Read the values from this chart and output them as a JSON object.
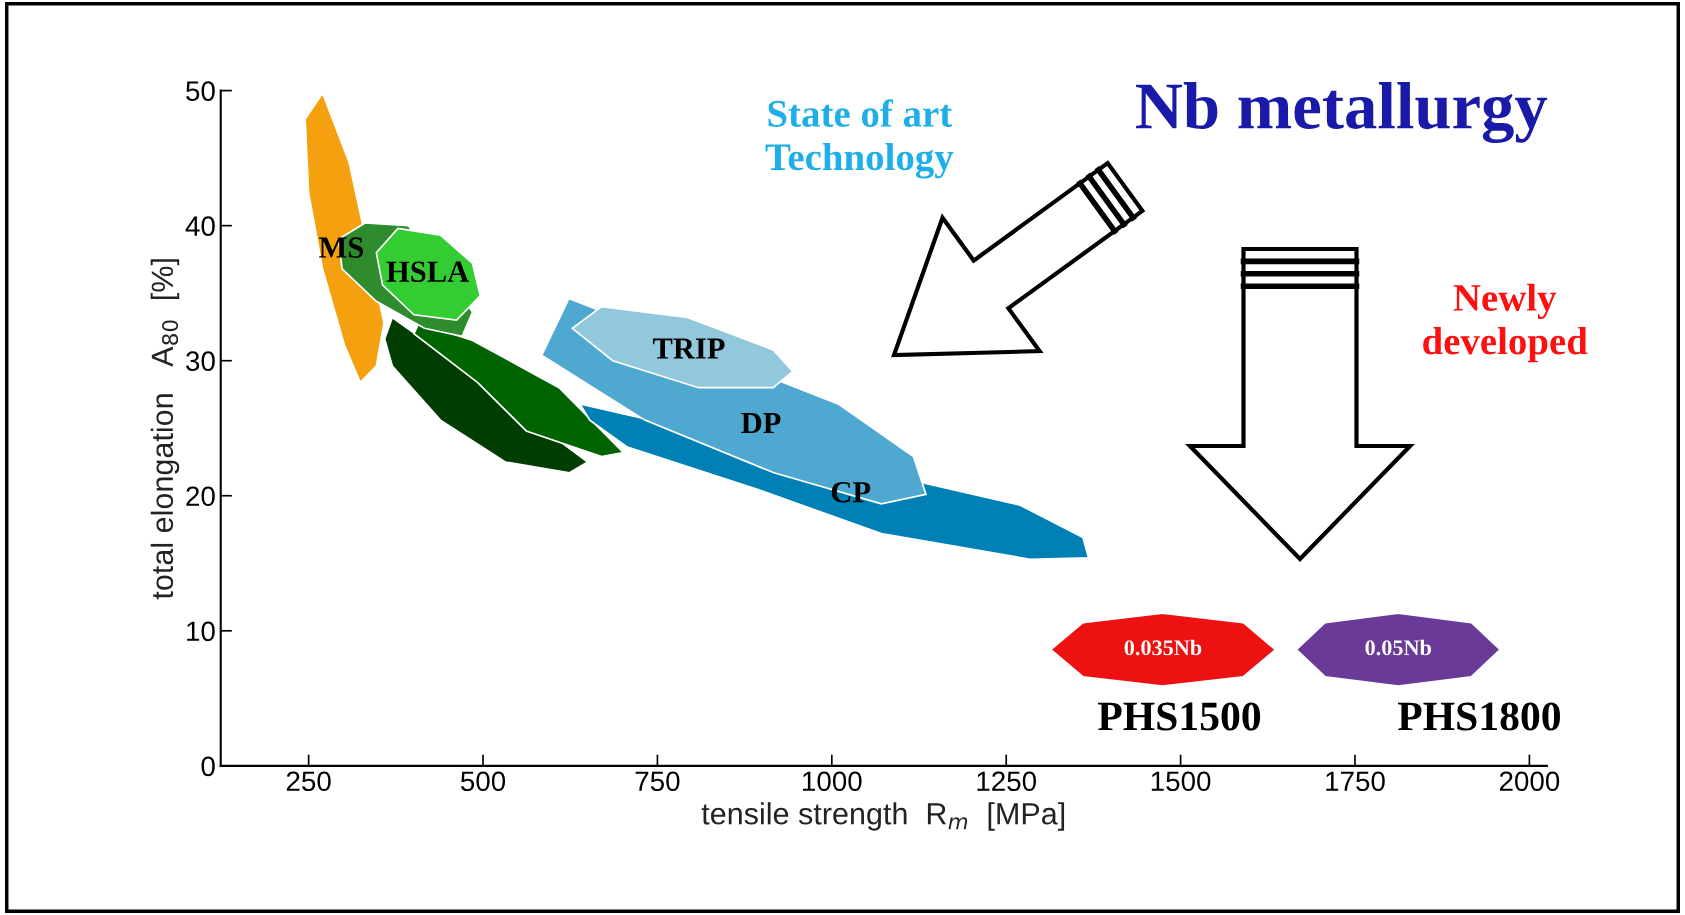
{
  "chart_data": {
    "type": "area",
    "xlabel": "tensile strength  R$_{m}$  [MPa]",
    "ylabel": "total elongation   A$_{80}$  [%]",
    "xlim": [
      124,
      2025
    ],
    "xticks": [
      250,
      500,
      750,
      1000,
      1250,
      1500,
      1750,
      2000
    ],
    "ylim": [
      0,
      50
    ],
    "yticks": [
      0,
      10,
      20,
      30,
      40,
      50
    ],
    "grid": false,
    "series": [
      {
        "name": "MS",
        "color": "#f5a00f",
        "x": [
          270,
          308,
          339,
          358,
          347,
          324,
          301,
          270,
          250,
          245
        ],
        "values": [
          49.8,
          44.7,
          null,
          32.8,
          29.6,
          28.4,
          31.2,
          36.8,
          42.4,
          47.9
        ]
      },
      {
        "color": "#003d00",
        "x": [
          370,
          424,
          532,
          639,
          650,
          624,
          532,
          439,
          370,
          359
        ],
        "values": [
          33.2,
          31.2,
          null,
          null,
          22.5,
          21.7,
          22.5,
          25.6,
          29.6,
          31.6
        ]
      },
      {
        "color": "#006400",
        "x": [
          408,
          485,
          609,
          701,
          670,
          562,
          492,
          401
        ],
        "values": [
          32.8,
          31.5,
          28.0,
          23.2,
          22.9,
          24.8,
          28.4,
          32.0
        ]
      },
      {
        "name": "CP",
        "color": "#0080b4",
        "x": [
          639,
          793,
          1040,
          1270,
          1360,
          1368,
          1284,
          1071,
          892,
          707,
          653
        ],
        "values": [
          26.8,
          null,
          null,
          19.3,
          16.9,
          15.4,
          15.3,
          17.2,
          20.5,
          23.6,
          25.6
        ]
      },
      {
        "name": "DP",
        "color": "#4fa8d0",
        "x": [
          623,
          1009,
          1117,
          1135,
          1071,
          917,
          732,
          584
        ],
        "values": [
          34.6,
          26.8,
          22.9,
          20.1,
          19.4,
          21.7,
          25.6,
          30.4
        ]
      },
      {
        "name": "TRIP",
        "color": "#92c8dc",
        "x": [
          670,
          793,
          916,
          944,
          916,
          809,
          686,
          628
        ],
        "values": [
          34.0,
          33.2,
          30.8,
          29.2,
          28.0,
          28.0,
          30.0,
          32.4
        ]
      },
      {
        "color": "#2e8b2e",
        "x": [
          331,
          393,
          455,
          485,
          470,
          416,
          347,
          298,
          293
        ],
        "values": [
          40.2,
          40.0,
          null,
          33.6,
          31.8,
          32.4,
          34.4,
          36.8,
          39.0
        ]
      },
      {
        "name": "HSLA",
        "color": "#33cc33",
        "x": [
          378,
          439,
          485,
          496,
          462,
          401,
          356,
          347
        ],
        "values": [
          39.8,
          39.3,
          37.2,
          34.8,
          33.0,
          33.4,
          35.6,
          38.0
        ]
      },
      {
        "name": "0.035Nb",
        "color": "#ee1111",
        "x": [
          1314,
          1360,
          1474,
          1590,
          1636,
          1590,
          1474,
          1360
        ],
        "values": [
          8.6,
          10.6,
          11.3,
          10.6,
          8.6,
          6.6,
          5.9,
          6.6
        ]
      },
      {
        "name": "0.05Nb",
        "color": "#6a3a99",
        "x": [
          1666,
          1707,
          1812,
          1917,
          1958,
          1917,
          1812,
          1707
        ],
        "values": [
          8.6,
          10.6,
          11.3,
          10.6,
          8.6,
          6.6,
          5.9,
          6.6
        ]
      }
    ],
    "annotations": [
      "State of art\nTechnology",
      "Nb metallurgy",
      "Newly\ndeveloped",
      "PHS1500",
      "PHS1800"
    ]
  }
}
